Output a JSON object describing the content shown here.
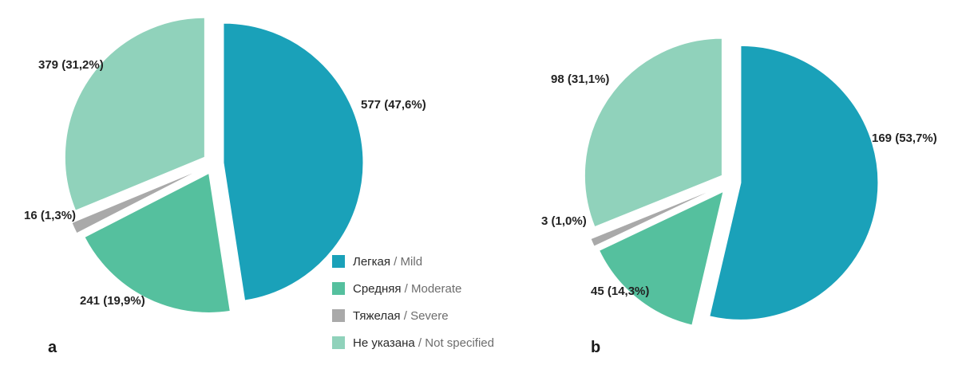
{
  "colors": {
    "mild": "#1aa1b9",
    "moderate": "#55c09e",
    "severe": "#a9a9a9",
    "not_specified": "#90d2bb"
  },
  "legend": [
    {
      "key": "mild",
      "ru": "Легкая",
      "sep": " / ",
      "en": "Mild"
    },
    {
      "key": "moderate",
      "ru": "Средняя",
      "sep": " / ",
      "en": "Moderate"
    },
    {
      "key": "severe",
      "ru": "Тяжелая",
      "sep": " / ",
      "en": "Severe"
    },
    {
      "key": "not_specified",
      "ru": "Не указана",
      "sep": " / ",
      "en": "Not specified"
    }
  ],
  "chart_data": [
    {
      "type": "pie",
      "panel_label": "a",
      "exploded": true,
      "slices": [
        {
          "key": "mild",
          "value": 577,
          "percent": 47.6,
          "label": "577 (47,6%)"
        },
        {
          "key": "moderate",
          "value": 241,
          "percent": 19.9,
          "label": "241 (19,9%)"
        },
        {
          "key": "severe",
          "value": 16,
          "percent": 1.3,
          "label": "16 (1,3%)"
        },
        {
          "key": "not_specified",
          "value": 379,
          "percent": 31.2,
          "label": "379 (31,2%)"
        }
      ]
    },
    {
      "type": "pie",
      "panel_label": "b",
      "exploded": true,
      "slices": [
        {
          "key": "mild",
          "value": 169,
          "percent": 53.7,
          "label": "169 (53,7%)"
        },
        {
          "key": "moderate",
          "value": 45,
          "percent": 14.3,
          "label": "45 (14,3%)"
        },
        {
          "key": "severe",
          "value": 3,
          "percent": 1.0,
          "label": "3 (1,0%)"
        },
        {
          "key": "not_specified",
          "value": 98,
          "percent": 31.1,
          "label": "98 (31,1%)"
        }
      ]
    }
  ]
}
